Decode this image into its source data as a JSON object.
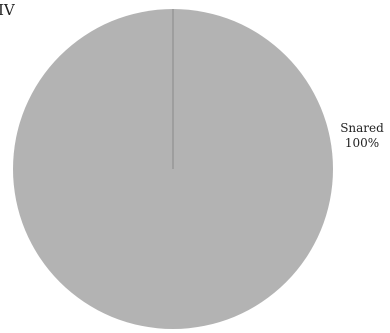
{
  "chart_data": {
    "type": "pie",
    "title": "IV",
    "slices": [
      {
        "label": "Snared",
        "value": 100,
        "percent_label": "100%",
        "color": "#b3b3b3"
      }
    ],
    "divider_color": "#8a8a8a"
  }
}
